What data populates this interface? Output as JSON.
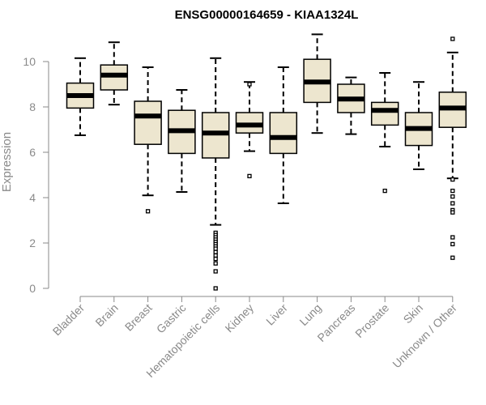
{
  "chart_data": {
    "type": "boxplot",
    "title": "ENSG00000164659 - KIAA1324L",
    "xlabel": "",
    "ylabel": "Expression",
    "ylim": [
      0,
      11.2
    ],
    "yticks": [
      0,
      2,
      4,
      6,
      8,
      10
    ],
    "grid": false,
    "legend": "none",
    "colors": {
      "box_fill": "#ede6cf",
      "box_stroke": "#000000",
      "median": "#000000",
      "axis": "#8a8a8a"
    },
    "categories": [
      "Bladder",
      "Brain",
      "Breast",
      "Gastric",
      "Hematopoietic cells",
      "Kidney",
      "Liver",
      "Lung",
      "Pancreas",
      "Prostate",
      "Skin",
      "Unknown / Other"
    ],
    "boxes": [
      {
        "label": "Bladder",
        "min": 6.75,
        "q1": 7.95,
        "median": 8.5,
        "q3": 9.05,
        "max": 10.15,
        "outliers": []
      },
      {
        "label": "Brain",
        "min": 8.1,
        "q1": 8.75,
        "median": 9.4,
        "q3": 9.85,
        "max": 10.85,
        "outliers": []
      },
      {
        "label": "Breast",
        "min": 4.1,
        "q1": 6.35,
        "median": 7.6,
        "q3": 8.25,
        "max": 9.75,
        "outliers": [
          3.4
        ]
      },
      {
        "label": "Gastric",
        "min": 4.25,
        "q1": 5.95,
        "median": 6.95,
        "q3": 7.85,
        "max": 8.75,
        "outliers": []
      },
      {
        "label": "Hematopoietic cells",
        "min": 2.8,
        "q1": 5.75,
        "median": 6.85,
        "q3": 7.75,
        "max": 10.15,
        "outliers": [
          2.45,
          2.35,
          2.25,
          2.15,
          2.05,
          1.95,
          1.85,
          1.75,
          1.6,
          1.45,
          1.3,
          1.1,
          0.75,
          0.0
        ]
      },
      {
        "label": "Kidney",
        "min": 6.05,
        "q1": 6.85,
        "median": 7.2,
        "q3": 7.75,
        "max": 9.1,
        "outliers": [
          4.95,
          9.0
        ]
      },
      {
        "label": "Liver",
        "min": 3.75,
        "q1": 5.95,
        "median": 6.65,
        "q3": 7.75,
        "max": 9.75,
        "outliers": []
      },
      {
        "label": "Lung",
        "min": 6.85,
        "q1": 8.2,
        "median": 9.1,
        "q3": 10.1,
        "max": 11.2,
        "outliers": []
      },
      {
        "label": "Pancreas",
        "min": 6.8,
        "q1": 7.75,
        "median": 8.35,
        "q3": 9.0,
        "max": 9.3,
        "outliers": []
      },
      {
        "label": "Prostate",
        "min": 6.25,
        "q1": 7.2,
        "median": 7.85,
        "q3": 8.2,
        "max": 9.5,
        "outliers": [
          4.3
        ]
      },
      {
        "label": "Skin",
        "min": 5.25,
        "q1": 6.3,
        "median": 7.05,
        "q3": 7.75,
        "max": 9.1,
        "outliers": []
      },
      {
        "label": "Unknown / Other",
        "min": 4.85,
        "q1": 7.1,
        "median": 7.95,
        "q3": 8.65,
        "max": 10.4,
        "outliers": [
          11.0,
          4.8,
          4.3,
          4.05,
          3.75,
          3.45,
          3.35,
          2.25,
          1.95,
          1.35
        ]
      }
    ]
  }
}
